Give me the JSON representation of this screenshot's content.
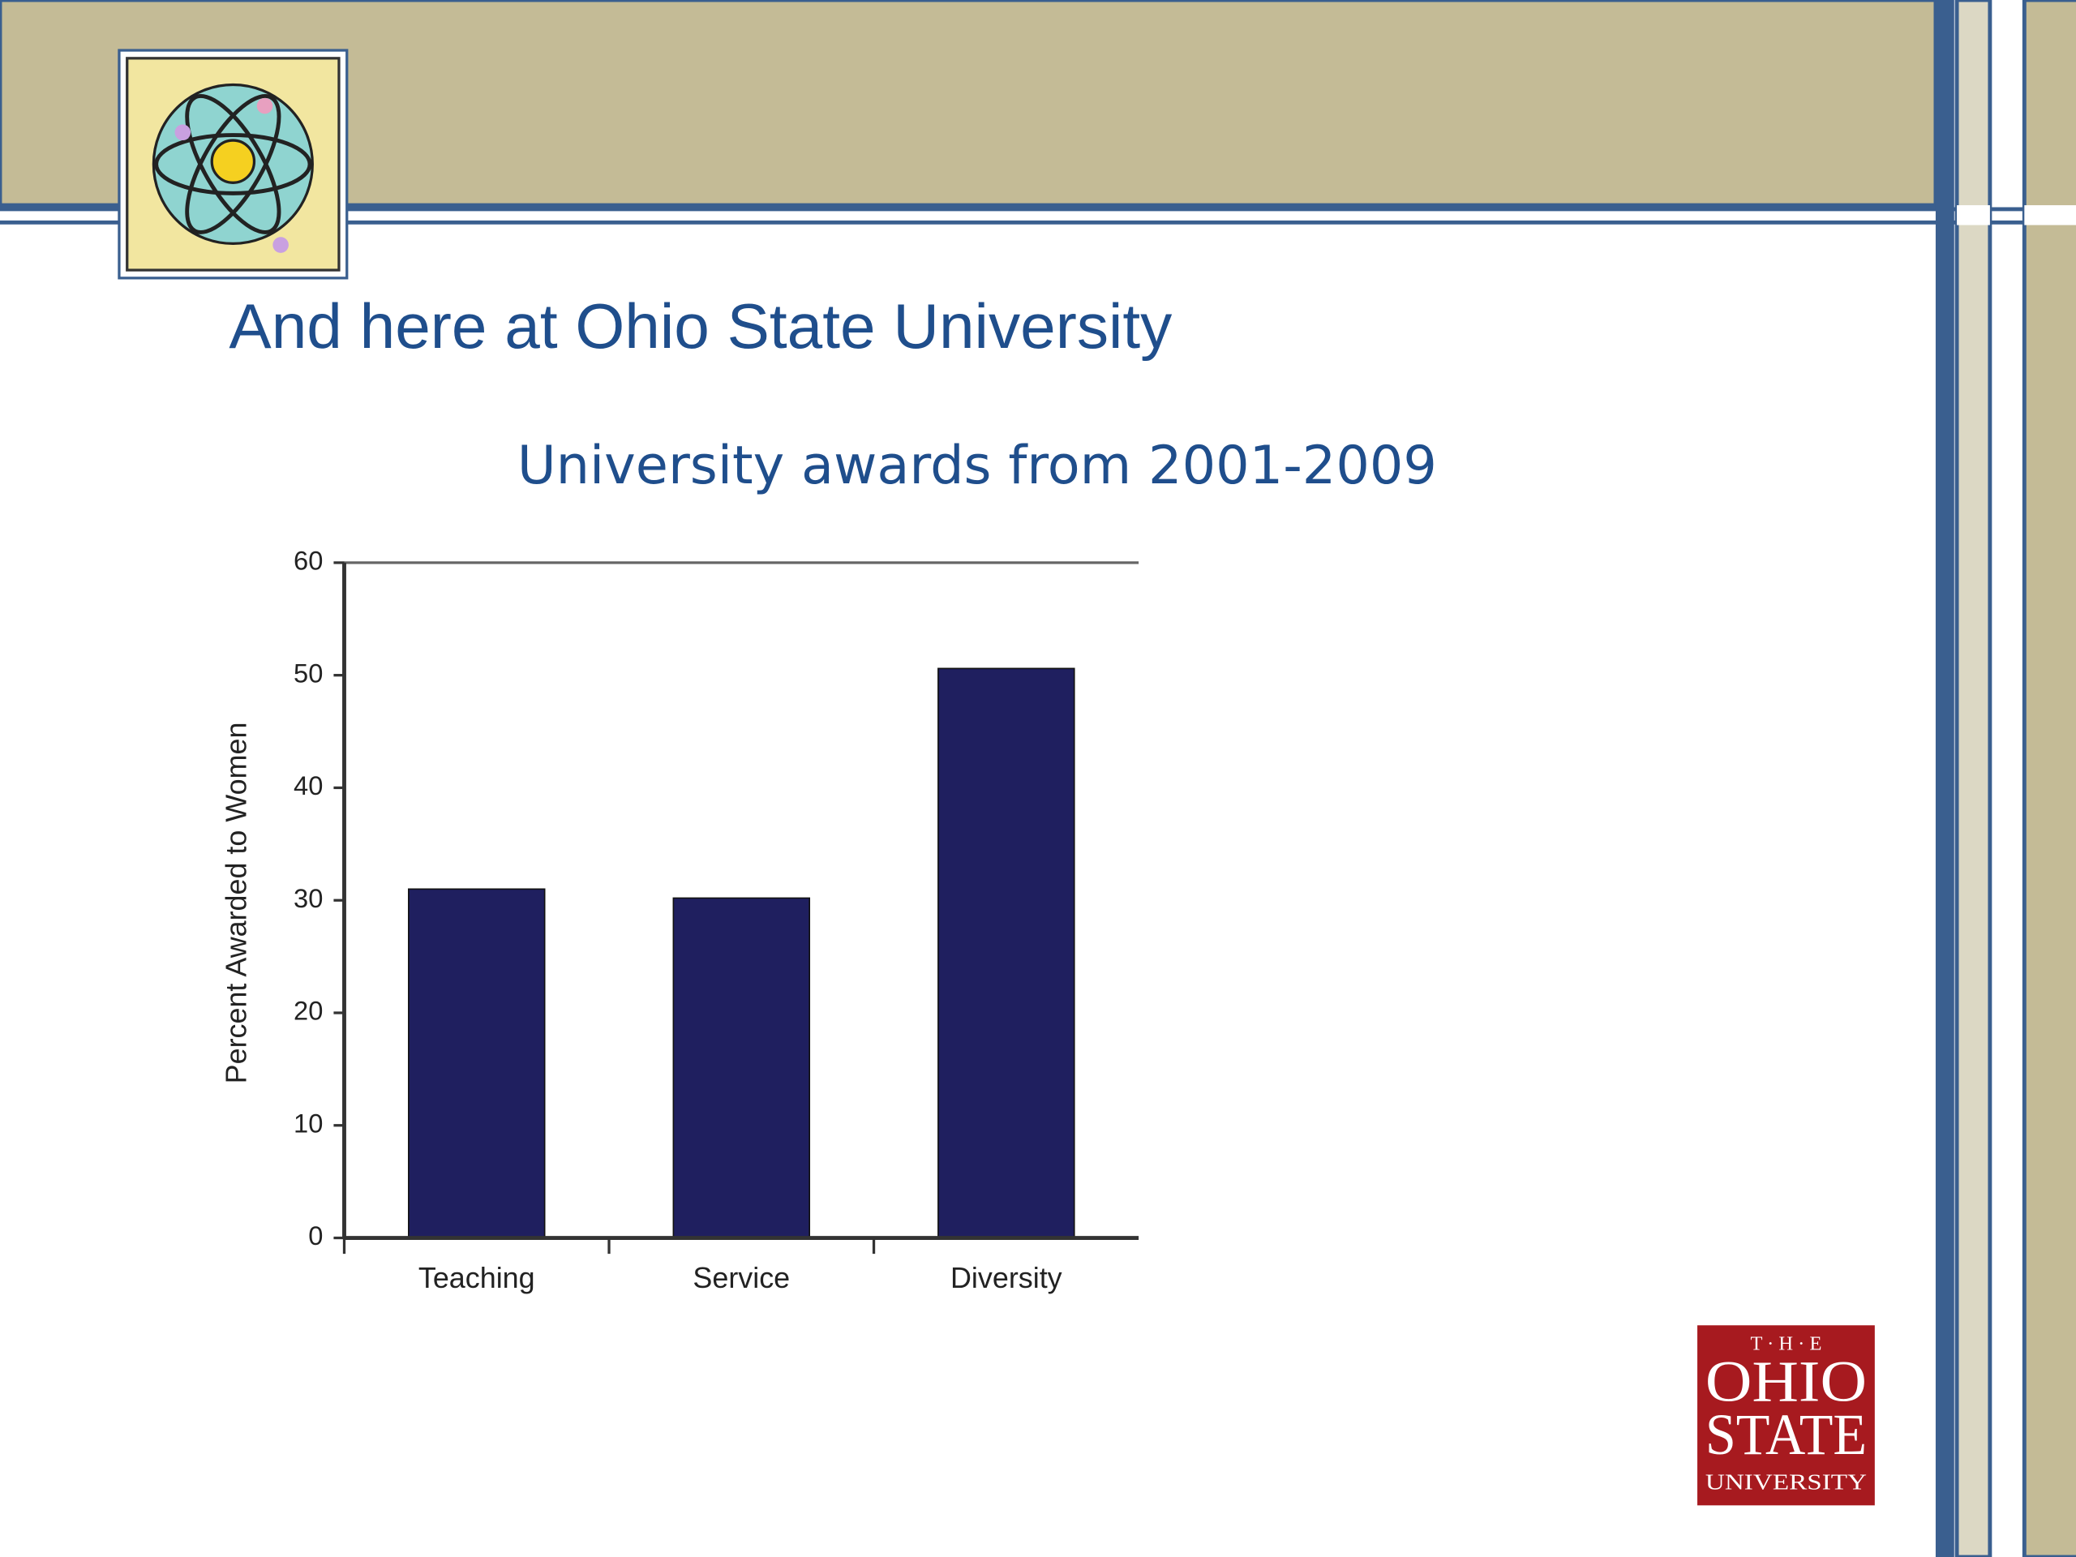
{
  "slide_title": "And here at Ohio State University",
  "chart_data": {
    "type": "bar",
    "title": "University awards from 2001-2009",
    "y_label": "Percent Awarded to Women",
    "categories": [
      "Teaching",
      "Service",
      "Diversity"
    ],
    "values": [
      31,
      30.2,
      50.6
    ],
    "color": "#1f1f5f",
    "ylim": [
      0,
      60
    ],
    "yticks": [
      0,
      10,
      20,
      30,
      40,
      50,
      60
    ]
  },
  "logo": {
    "lines": [
      "T · H · E",
      "OHIO",
      "STATE",
      "UNIVERSITY"
    ]
  }
}
